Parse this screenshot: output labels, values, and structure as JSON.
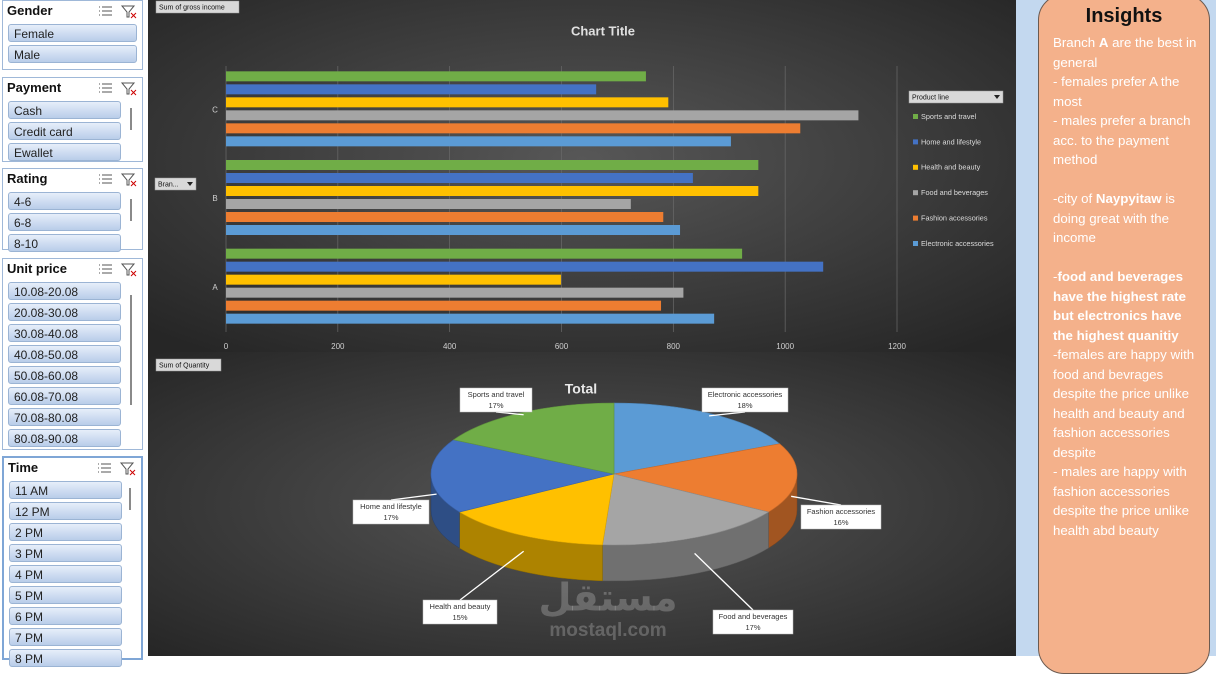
{
  "slicers": [
    {
      "title": "Gender",
      "items": [
        "Female",
        "Male"
      ]
    },
    {
      "title": "Payment",
      "items": [
        "Cash",
        "Credit card",
        "Ewallet"
      ]
    },
    {
      "title": "Rating",
      "items": [
        "4-6",
        "6-8",
        "8-10"
      ]
    },
    {
      "title": "Unit price",
      "items": [
        "10.08-20.08",
        "20.08-30.08",
        "30.08-40.08",
        "40.08-50.08",
        "50.08-60.08",
        "60.08-70.08",
        "70.08-80.08",
        "80.08-90.08"
      ]
    },
    {
      "title": "Time",
      "items": [
        "11 AM",
        "12 PM",
        "2 PM",
        "3 PM",
        "4 PM",
        "5 PM",
        "6 PM",
        "7 PM",
        "8 PM"
      ]
    }
  ],
  "chart_data": [
    {
      "type": "bar",
      "orientation": "horizontal",
      "title": "Chart Title",
      "field_button": "Sum of gross income",
      "axis_button": "Bran...",
      "legend_title": "Product line",
      "legend": "right",
      "grid": true,
      "categories": [
        "A",
        "B",
        "C"
      ],
      "series": [
        {
          "name": "Sports and travel",
          "color": "#70ad47",
          "values": [
            923,
            952,
            751
          ]
        },
        {
          "name": "Home and lifestyle",
          "color": "#4472c4",
          "values": [
            1068,
            835,
            662
          ]
        },
        {
          "name": "Health and beauty",
          "color": "#ffc000",
          "values": [
            599,
            952,
            791
          ]
        },
        {
          "name": "Food and beverages",
          "color": "#a5a5a5",
          "values": [
            818,
            724,
            1131
          ]
        },
        {
          "name": "Fashion accessories",
          "color": "#ed7d31",
          "values": [
            778,
            782,
            1027
          ]
        },
        {
          "name": "Electronic accessories",
          "color": "#5b9bd5",
          "values": [
            873,
            812,
            903
          ]
        }
      ],
      "xlim": [
        0,
        1200
      ],
      "xticks": [
        0,
        200,
        400,
        600,
        800,
        1000,
        1200
      ]
    },
    {
      "type": "pie",
      "title": "Total",
      "field_button": "Sum of Quantity",
      "three_d": true,
      "categories": [
        "Electronic accessories",
        "Fashion accessories",
        "Food and beverages",
        "Health and beauty",
        "Home and lifestyle",
        "Sports and travel"
      ],
      "values": [
        18,
        16,
        17,
        15,
        17,
        17
      ],
      "value_labels": [
        "18%",
        "16%",
        "17%",
        "15%",
        "17%",
        "17%"
      ],
      "colors": [
        "#5b9bd5",
        "#ed7d31",
        "#a5a5a5",
        "#ffc000",
        "#4472c4",
        "#70ad47"
      ]
    }
  ],
  "insights": {
    "title": "Insights",
    "paragraphs": [
      [
        {
          "text": "Branch "
        },
        {
          "text": "A",
          "bold": true
        },
        {
          "text": " are the best in general"
        }
      ],
      [
        {
          "text": "- females prefer A the most"
        }
      ],
      [
        {
          "text": "- males prefer  a branch acc. to the payment method"
        }
      ],
      [
        {
          "text": "-city of "
        },
        {
          "text": "Naypyitaw",
          "bold": true
        },
        {
          "text": " is doing great with the income"
        }
      ],
      [
        {
          "text": "-"
        },
        {
          "text": "food and beverages have the highest rate but electronics have the highest quanitiy",
          "bold": true
        }
      ],
      [
        {
          "text": "-females are happy with food and bevrages despite the price unlike health and beauty and fashion accessories despite"
        }
      ],
      [
        {
          "text": "- males are happy with fashion accessories despite the price  unlike health abd beauty"
        }
      ]
    ]
  },
  "watermark": {
    "arabic": "مستقل",
    "latin": "mostaql.com"
  }
}
